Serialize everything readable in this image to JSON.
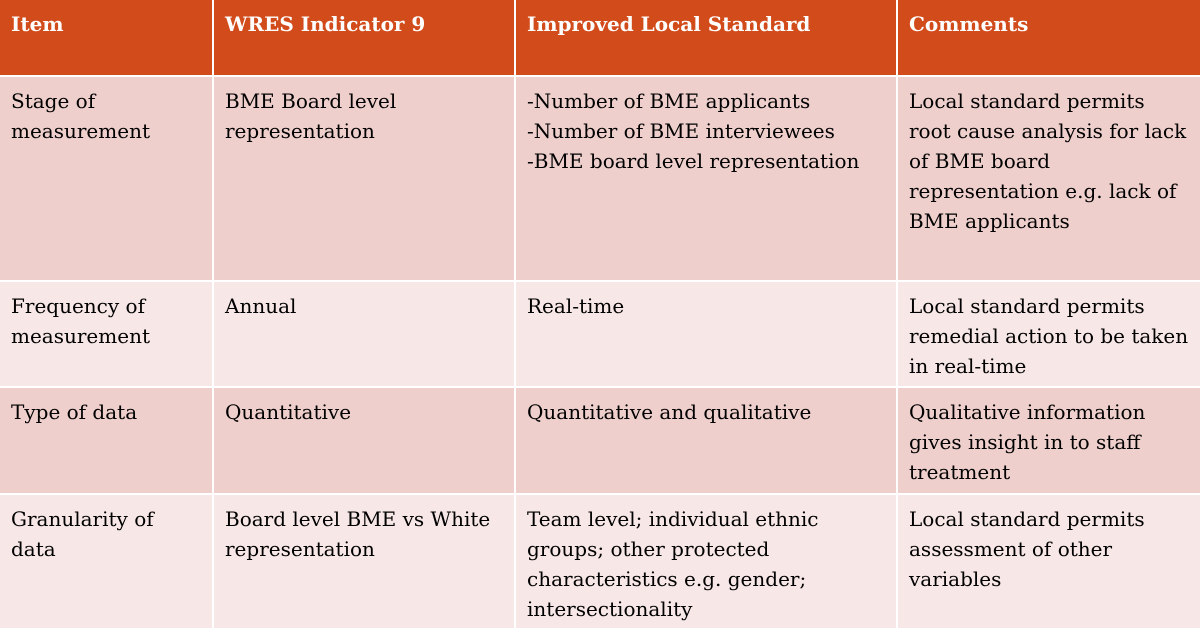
{
  "table": {
    "headers": [
      "Item",
      "WRES Indicator 9",
      "Improved Local Standard",
      "Comments"
    ],
    "rows": [
      {
        "item": "Stage of measurement",
        "wres": "BME Board level representation",
        "local": [
          "-Number of BME applicants",
          "-Number of BME interviewees",
          "-BME board level representation"
        ],
        "comments": "Local standard permits root cause analysis for lack of BME board representation e.g. lack of BME applicants"
      },
      {
        "item": "Frequency of measurement",
        "wres": "Annual",
        "local": [
          "Real-time"
        ],
        "comments": "Local standard permits remedial action to be taken in real-time"
      },
      {
        "item": "Type of data",
        "wres": "Quantitative",
        "local": [
          "Quantitative and qualitative"
        ],
        "comments": "Qualitative information gives insight in to staff treatment"
      },
      {
        "item": "Granularity of data",
        "wres": "Board level BME vs White representation",
        "local": [
          "Team level; individual ethnic groups; other protected characteristics e.g. gender; intersectionality"
        ],
        "comments": "Local standard permits assessment of other variables"
      }
    ]
  },
  "colors": {
    "header_bg": "#d24b1b",
    "row_dark": "#eecfcc",
    "row_light": "#f7e7e6"
  }
}
